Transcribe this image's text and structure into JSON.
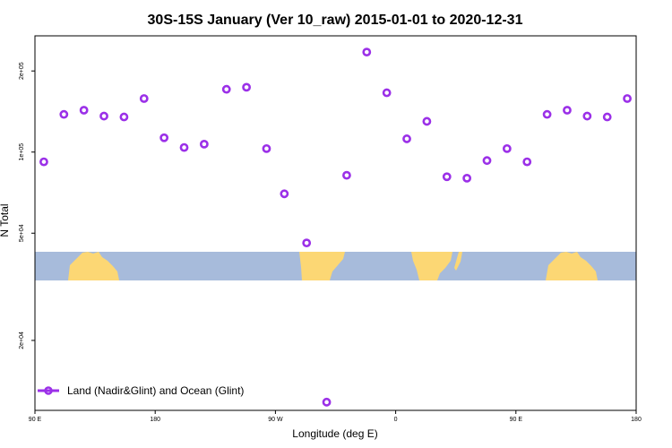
{
  "chart_data": {
    "type": "scatter",
    "title": "30S-15S January (Ver 10_raw)   2015-01-01 to 2020-12-31",
    "xlabel": "Longitude (deg E)",
    "ylabel": "N Total",
    "xlim": [
      -90,
      180
    ],
    "x_ticks": [
      {
        "value": -90,
        "label": "90 E"
      },
      {
        "value": -36,
        "label": "180"
      },
      {
        "value": 18,
        "label": "90 W"
      },
      {
        "value": 72,
        "label": "0"
      },
      {
        "value": 126,
        "label": "90 E"
      },
      {
        "value": 180,
        "label": "180"
      }
    ],
    "y_ticks": [
      {
        "value": 200000,
        "label": "2e+05"
      },
      {
        "value": 100000,
        "label": "1e+05"
      },
      {
        "value": 50000,
        "label": "5e+04"
      },
      {
        "value": 20000,
        "label": "2e+04"
      }
    ],
    "y_scale": "log",
    "ylim": [
      11000,
      270000
    ],
    "grid": false,
    "legend_position": "bottom-left",
    "series": [
      {
        "name": "Land (Nadir&Glint) and Ocean (Glint)",
        "color": "#9b30e8",
        "marker": "open-circle",
        "x": [
          -86,
          -77,
          -68,
          -59,
          -50,
          -41,
          -32,
          -23,
          -14,
          -4,
          5,
          14,
          22,
          32,
          41,
          50,
          59,
          68,
          77,
          86,
          95,
          104,
          113,
          122,
          131,
          140,
          149,
          158,
          167,
          176
        ],
        "y": [
          92000,
          138000,
          143000,
          136000,
          135000,
          158000,
          113000,
          104000,
          107000,
          171000,
          174000,
          103000,
          70000,
          46000,
          11800,
          82000,
          235000,
          166000,
          112000,
          130000,
          81000,
          80000,
          93000,
          103000,
          92000,
          138000,
          143000,
          136000,
          135000,
          158000
        ]
      }
    ]
  }
}
